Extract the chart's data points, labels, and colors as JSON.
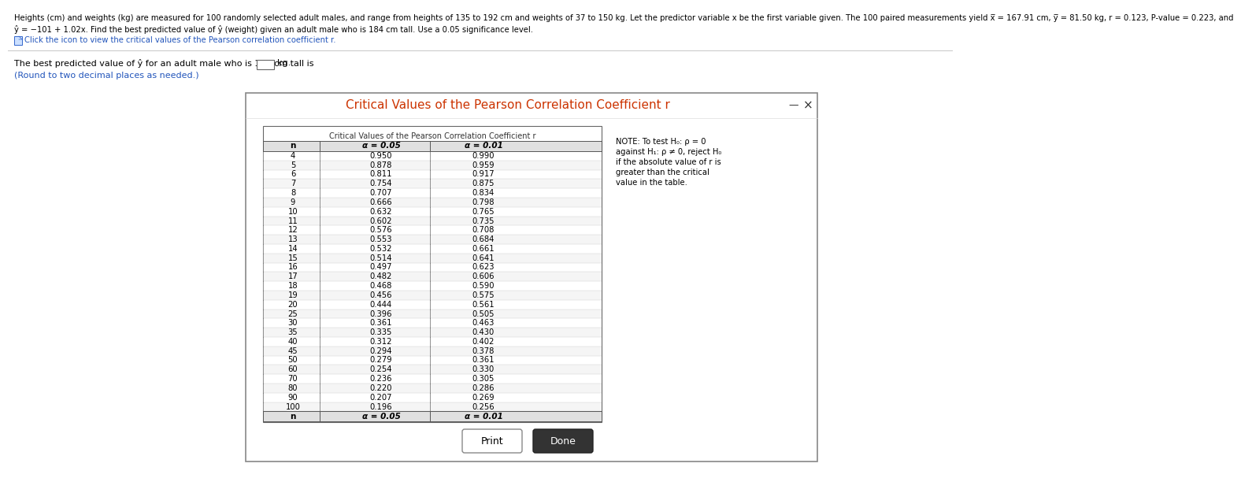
{
  "header_line1": "Heights (cm) and weights (kg) are measured for 100 randomly selected adult males, and range from heights of 135 to 192 cm and weights of 37 to 150 kg. Let the predictor variable x be the first variable given. The 100 paired measurements yield x̅ = 167.91 cm, y̅ = 81.50 kg, r = 0.123, P-value = 0.223, and",
  "header_line2": "ŷ = −101 + 1.02x. Find the best predicted value of ŷ (weight) given an adult male who is 184 cm tall. Use a 0.05 significance level.",
  "click_text": "Click the icon to view the critical values of the Pearson correlation coefficient r.",
  "question_main": "The best predicted value of ŷ for an adult male who is 184 cm tall is",
  "question_kg": "kg.",
  "round_text": "(Round to two decimal places as needed.)",
  "dialog_title": "Critical Values of the Pearson Correlation Coefficient r",
  "table_subtitle": "Critical Values of the Pearson Correlation Coefficient r",
  "col_n": "n",
  "col_a05": "α = 0.05",
  "col_a01": "α = 0.01",
  "n_values": [
    4,
    5,
    6,
    7,
    8,
    9,
    10,
    11,
    12,
    13,
    14,
    15,
    16,
    17,
    18,
    19,
    20,
    25,
    30,
    35,
    40,
    45,
    50,
    60,
    70,
    80,
    90,
    100
  ],
  "alpha_05": [
    0.95,
    0.878,
    0.811,
    0.754,
    0.707,
    0.666,
    0.632,
    0.602,
    0.576,
    0.553,
    0.532,
    0.514,
    0.497,
    0.482,
    0.468,
    0.456,
    0.444,
    0.396,
    0.361,
    0.335,
    0.312,
    0.294,
    0.279,
    0.254,
    0.236,
    0.22,
    0.207,
    0.196
  ],
  "alpha_01": [
    0.99,
    0.959,
    0.917,
    0.875,
    0.834,
    0.798,
    0.765,
    0.735,
    0.708,
    0.684,
    0.661,
    0.641,
    0.623,
    0.606,
    0.59,
    0.575,
    0.561,
    0.505,
    0.463,
    0.43,
    0.402,
    0.378,
    0.361,
    0.33,
    0.305,
    0.286,
    0.269,
    0.256
  ],
  "note_line1": "NOTE: To test H₀: ρ = 0",
  "note_line2": "against H₁: ρ ≠ 0, reject H₀",
  "note_line3": "if the absolute value of r is",
  "note_line4": "greater than the critical",
  "note_line5": "value in the table.",
  "print_label": "Print",
  "done_label": "Done",
  "bg_color": "#ffffff",
  "header_text_color": "#000000",
  "blue_text_color": "#2255bb",
  "dialog_title_color": "#cc3300",
  "table_text_color": "#000000",
  "dialog_border_color": "#888888",
  "table_border_color": "#666666",
  "header_row_bg": "#e8e8e8",
  "row_bg_even": "#ffffff",
  "row_bg_odd": "#f5f5f5",
  "sep_line_color": "#cccccc",
  "done_btn_bg": "#333333",
  "done_btn_fg": "#ffffff",
  "print_btn_bg": "#ffffff",
  "print_btn_border": "#888888",
  "print_btn_fg": "#000000"
}
